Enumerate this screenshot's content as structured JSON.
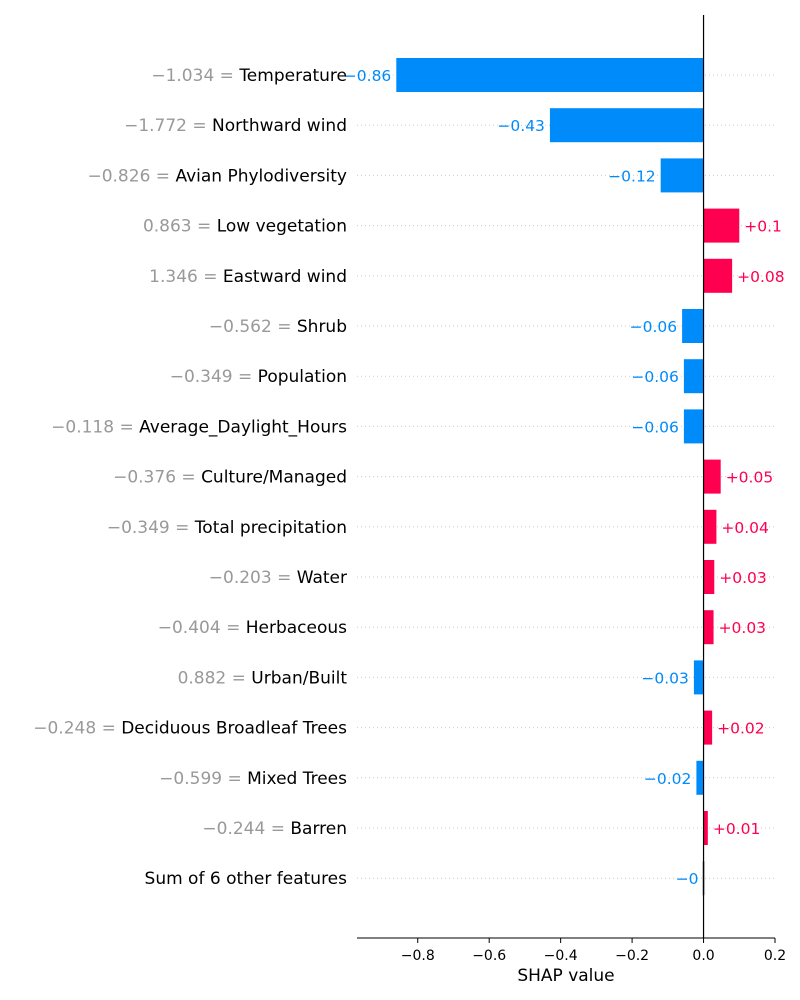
{
  "chart_data": {
    "type": "bar",
    "orientation": "horizontal",
    "title": "",
    "xlabel": "SHAP value",
    "ylabel": "",
    "xlim": [
      -0.97,
      0.2
    ],
    "xticks": [
      -0.8,
      -0.6,
      -0.4,
      -0.2,
      0.0,
      0.2
    ],
    "xtick_labels": [
      "−0.8",
      "−0.6",
      "−0.4",
      "−0.2",
      "0.0",
      "0.2"
    ],
    "baseline": 0,
    "colors": {
      "positive": "#ff0051",
      "negative": "#008bfb",
      "zero": "#cccccc",
      "feature_value": "#999999"
    },
    "features": [
      {
        "value_text": "−1.034",
        "name": "Temperature",
        "shap": -0.86,
        "label": "−0.86"
      },
      {
        "value_text": "−1.772",
        "name": "Northward wind",
        "shap": -0.43,
        "label": "−0.43"
      },
      {
        "value_text": "−0.826",
        "name": "Avian Phylodiversity",
        "shap": -0.12,
        "label": "−0.12"
      },
      {
        "value_text": "0.863",
        "name": "Low vegetation",
        "shap": 0.1,
        "label": "+0.1"
      },
      {
        "value_text": "1.346",
        "name": "Eastward wind",
        "shap": 0.08,
        "label": "+0.08"
      },
      {
        "value_text": "−0.562",
        "name": "Shrub",
        "shap": -0.06,
        "label": "−0.06"
      },
      {
        "value_text": "−0.349",
        "name": "Population",
        "shap": -0.055,
        "label": "−0.06"
      },
      {
        "value_text": "−0.118",
        "name": "Average_Daylight_Hours",
        "shap": -0.055,
        "label": "−0.06"
      },
      {
        "value_text": "−0.376",
        "name": "Culture/Managed",
        "shap": 0.048,
        "label": "+0.05"
      },
      {
        "value_text": "−0.349",
        "name": "Total precipitation",
        "shap": 0.036,
        "label": "+0.04"
      },
      {
        "value_text": "−0.203",
        "name": "Water",
        "shap": 0.03,
        "label": "+0.03"
      },
      {
        "value_text": "−0.404",
        "name": "Herbaceous",
        "shap": 0.028,
        "label": "+0.03"
      },
      {
        "value_text": "0.882",
        "name": "Urban/Built",
        "shap": -0.027,
        "label": "−0.03"
      },
      {
        "value_text": "−0.248",
        "name": "Deciduous Broadleaf Trees",
        "shap": 0.024,
        "label": "+0.02"
      },
      {
        "value_text": "−0.599",
        "name": "Mixed Trees",
        "shap": -0.02,
        "label": "−0.02"
      },
      {
        "value_text": "−0.244",
        "name": "Barren",
        "shap": 0.012,
        "label": "+0.01"
      },
      {
        "value_text": "",
        "name": "Sum of 6 other features",
        "shap": 0.0,
        "label": "−0"
      }
    ]
  }
}
